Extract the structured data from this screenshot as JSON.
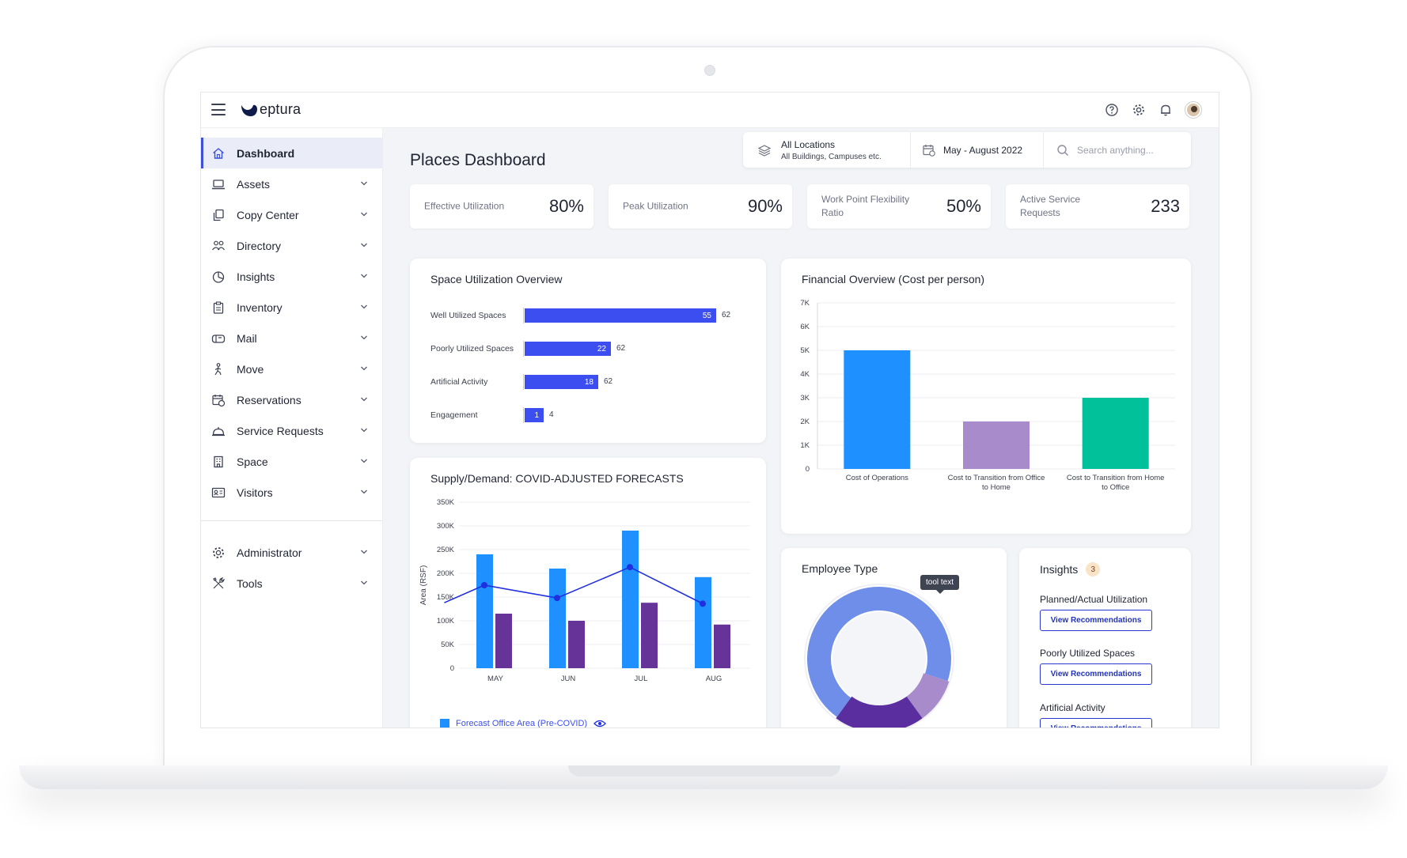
{
  "app": {
    "logo_text": "eptura"
  },
  "header": {
    "icons": [
      "help-icon",
      "settings-icon",
      "bell-icon",
      "avatar"
    ]
  },
  "sidebar": {
    "items": [
      {
        "label": "Dashboard",
        "icon": "home-icon",
        "active": true
      },
      {
        "label": "Assets",
        "icon": "laptop-icon"
      },
      {
        "label": "Copy Center",
        "icon": "copy-icon"
      },
      {
        "label": "Directory",
        "icon": "people-icon"
      },
      {
        "label": "Insights",
        "icon": "pie-chart-icon"
      },
      {
        "label": "Inventory",
        "icon": "clipboard-icon"
      },
      {
        "label": "Mail",
        "icon": "mailbox-icon"
      },
      {
        "label": "Move",
        "icon": "walking-person-icon"
      },
      {
        "label": "Reservations",
        "icon": "calendar-clock-icon"
      },
      {
        "label": "Service Requests",
        "icon": "bell-service-icon"
      },
      {
        "label": "Space",
        "icon": "building-icon"
      },
      {
        "label": "Visitors",
        "icon": "id-card-icon"
      }
    ],
    "bottom_items": [
      {
        "label": "Administrator",
        "icon": "gear-icon"
      },
      {
        "label": "Tools",
        "icon": "tools-icon"
      }
    ]
  },
  "page": {
    "title": "Places Dashboard"
  },
  "filters": {
    "location_title": "All Locations",
    "location_sub": "All Buildings, Campuses etc.",
    "date_range": "May - August 2022",
    "search_placeholder": "Search anything..."
  },
  "kpis": [
    {
      "label": "Effective Utilization",
      "value": "80%"
    },
    {
      "label": "Peak Utilization",
      "value": "90%"
    },
    {
      "label": "Work Point Flexibility Ratio",
      "value": "50%"
    },
    {
      "label": "Active Service Requests",
      "value": "233"
    }
  ],
  "space_utilization": {
    "title": "Space Utilization Overview",
    "rows": [
      {
        "label": "Well Utilized Spaces",
        "value": "55",
        "total": "62"
      },
      {
        "label": "Poorly Utilized Spaces",
        "value": "22",
        "total": "62"
      },
      {
        "label": "Artificial Activity",
        "value": "18",
        "total": "62"
      },
      {
        "label": "Engagement",
        "value": "1",
        "total": "4"
      }
    ]
  },
  "supply_demand": {
    "title": "Supply/Demand: COVID-ADJUSTED FORECASTS",
    "legend_label": "Forecast Office Area (Pre-COVID)"
  },
  "financial": {
    "title": "Financial Overview (Cost per person)"
  },
  "employee_type": {
    "title": "Employee Type",
    "tooltip": "tool text"
  },
  "insights": {
    "title": "Insights",
    "count": "3",
    "items": [
      {
        "label": "Planned/Actual Utilization",
        "button": "View Recommendations"
      },
      {
        "label": "Poorly Utilized Spaces",
        "button": "View Recommendations"
      },
      {
        "label": "Artificial Activity",
        "button": "View Recommendations"
      }
    ]
  },
  "chart_data": [
    {
      "type": "bar",
      "orientation": "horizontal",
      "title": "Space Utilization Overview",
      "categories": [
        "Well Utilized Spaces",
        "Poorly Utilized Spaces",
        "Artificial Activity",
        "Engagement"
      ],
      "values": [
        55,
        22,
        18,
        1
      ],
      "totals": [
        62,
        62,
        62,
        4
      ],
      "color": "#3c4ef0"
    },
    {
      "type": "bar",
      "title": "Supply/Demand: COVID-ADJUSTED FORECASTS",
      "categories": [
        "MAY",
        "JUN",
        "JUL",
        "AUG"
      ],
      "ylabel": "Area (RSF)",
      "ylim": [
        0,
        350000
      ],
      "yticks": [
        "0",
        "50K",
        "100K",
        "150K",
        "200K",
        "250K",
        "300K",
        "350K"
      ],
      "series": [
        {
          "name": "Forecast Office Area (Pre-COVID)",
          "values": [
            240000,
            210000,
            290000,
            192000
          ],
          "color": "#1e90ff"
        },
        {
          "values": [
            115000,
            100000,
            138000,
            92000
          ],
          "color": "#663399"
        }
      ],
      "line_series": {
        "points": [
          [
            -0.55,
            138000
          ],
          [
            0,
            175000
          ],
          [
            1,
            148000
          ],
          [
            2,
            213000
          ],
          [
            3,
            136000
          ]
        ],
        "color": "#1f2fe0"
      },
      "grid": true
    },
    {
      "type": "bar",
      "title": "Financial Overview (Cost per person)",
      "categories": [
        "Cost of Operations",
        "Cost to Transition from Office to Home",
        "Cost to Transition from Home to Office"
      ],
      "values": [
        5000,
        2000,
        3000
      ],
      "colors": [
        "#1e90ff",
        "#a78bcb",
        "#00c19a"
      ],
      "ylim": [
        0,
        7000
      ],
      "yticks": [
        "0",
        "1K",
        "2K",
        "3K",
        "4K",
        "5K",
        "6K",
        "7K"
      ],
      "grid": true
    },
    {
      "type": "pie",
      "title": "Employee Type",
      "donut": true,
      "values": [
        70,
        10,
        20
      ],
      "colors": [
        "#6e8ee9",
        "#a78bcb",
        "#5a2e9e"
      ]
    }
  ]
}
